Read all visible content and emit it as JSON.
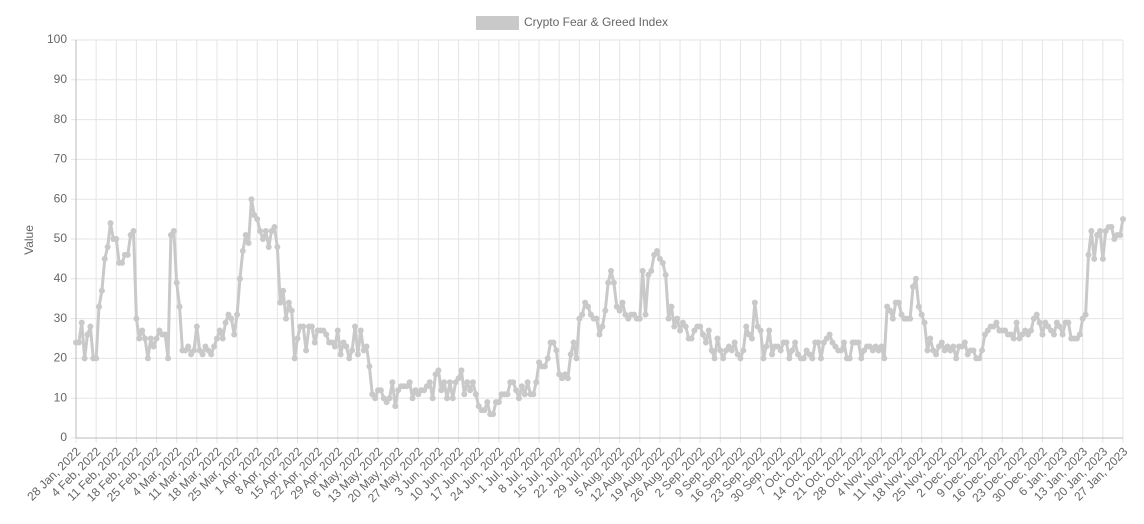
{
  "chart_data": {
    "type": "line",
    "y_label": "Value",
    "ylim": [
      0,
      100
    ],
    "yticks": [
      0,
      10,
      20,
      30,
      40,
      50,
      60,
      70,
      80,
      90,
      100
    ],
    "grid": true,
    "legend": "top",
    "categories": [
      "28 Jan, 2022",
      null,
      null,
      null,
      null,
      null,
      null,
      "4 Feb, 2022",
      null,
      null,
      null,
      null,
      null,
      null,
      "11 Feb, 2022",
      null,
      null,
      null,
      null,
      null,
      null,
      "18 Feb, 2022",
      null,
      null,
      null,
      null,
      null,
      null,
      "25 Feb, 2022",
      null,
      null,
      null,
      null,
      null,
      null,
      "4 Mar, 2022",
      null,
      null,
      null,
      null,
      null,
      null,
      "11 Mar, 2022",
      null,
      null,
      null,
      null,
      null,
      null,
      "18 Mar, 2022",
      null,
      null,
      null,
      null,
      null,
      null,
      "25 Mar, 2022",
      null,
      null,
      null,
      null,
      null,
      null,
      "1 Apr, 2022",
      null,
      null,
      null,
      null,
      null,
      null,
      "8 Apr, 2022",
      null,
      null,
      null,
      null,
      null,
      null,
      "15 Apr, 2022",
      null,
      null,
      null,
      null,
      null,
      null,
      "22 Apr, 2022",
      null,
      null,
      null,
      null,
      null,
      null,
      "29 Apr, 2022",
      null,
      null,
      null,
      null,
      null,
      null,
      "6 May, 2022",
      null,
      null,
      null,
      null,
      null,
      null,
      "13 May, 2022",
      null,
      null,
      null,
      null,
      null,
      null,
      "20 May, 2022",
      null,
      null,
      null,
      null,
      null,
      null,
      "27 May, 2022",
      null,
      null,
      null,
      null,
      null,
      null,
      "3 Jun, 2022",
      null,
      null,
      null,
      null,
      null,
      null,
      "10 Jun, 2022",
      null,
      null,
      null,
      null,
      null,
      null,
      "17 Jun, 2022",
      null,
      null,
      null,
      null,
      null,
      null,
      "24 Jun, 2022",
      null,
      null,
      null,
      null,
      null,
      null,
      "1 Jul, 2022",
      null,
      null,
      null,
      null,
      null,
      null,
      "8 Jul, 2022",
      null,
      null,
      null,
      null,
      null,
      null,
      "15 Jul, 2022",
      null,
      null,
      null,
      null,
      null,
      null,
      "22 Jul, 2022",
      null,
      null,
      null,
      null,
      null,
      null,
      "29 Jul, 2022",
      null,
      null,
      null,
      null,
      null,
      null,
      "5 Aug, 2022",
      null,
      null,
      null,
      null,
      null,
      null,
      "12 Aug, 2022",
      null,
      null,
      null,
      null,
      null,
      null,
      "19 Aug, 2022",
      null,
      null,
      null,
      null,
      null,
      null,
      "26 Aug, 2022",
      null,
      null,
      null,
      null,
      null,
      null,
      "2 Sep, 2022",
      null,
      null,
      null,
      null,
      null,
      null,
      "9 Sep, 2022",
      null,
      null,
      null,
      null,
      null,
      null,
      "16 Sep, 2022",
      null,
      null,
      null,
      null,
      null,
      null,
      "23 Sep, 2022",
      null,
      null,
      null,
      null,
      null,
      null,
      "30 Sep, 2022",
      null,
      null,
      null,
      null,
      null,
      null,
      "7 Oct, 2022",
      null,
      null,
      null,
      null,
      null,
      null,
      "14 Oct, 2022",
      null,
      null,
      null,
      null,
      null,
      null,
      "21 Oct, 2022",
      null,
      null,
      null,
      null,
      null,
      null,
      "28 Oct, 2022",
      null,
      null,
      null,
      null,
      null,
      null,
      "4 Nov, 2022",
      null,
      null,
      null,
      null,
      null,
      null,
      "11 Nov, 2022",
      null,
      null,
      null,
      null,
      null,
      null,
      "18 Nov, 2022",
      null,
      null,
      null,
      null,
      null,
      null,
      "25 Nov, 2022",
      null,
      null,
      null,
      null,
      null,
      null,
      "2 Dec, 2022",
      null,
      null,
      null,
      null,
      null,
      null,
      "9 Dec, 2022",
      null,
      null,
      null,
      null,
      null,
      null,
      "16 Dec, 2022",
      null,
      null,
      null,
      null,
      null,
      null,
      "23 Dec, 2022",
      null,
      null,
      null,
      null,
      null,
      null,
      "30 Dec, 2022",
      null,
      null,
      null,
      null,
      null,
      null,
      "6 Jan, 2023",
      null,
      null,
      null,
      null,
      null,
      null,
      "13 Jan, 2023",
      null,
      null,
      null,
      null,
      null,
      null,
      "20 Jan, 2023",
      null,
      null,
      null,
      null,
      null,
      null,
      "27 Jan, 2023"
    ],
    "series": [
      {
        "name": "Crypto Fear & Greed Index",
        "color": "#c9c9c9",
        "values": [
          24,
          24,
          29,
          20,
          26,
          28,
          20,
          20,
          33,
          37,
          45,
          48,
          54,
          50,
          50,
          44,
          44,
          46,
          46,
          51,
          52,
          30,
          25,
          27,
          25,
          20,
          25,
          23,
          25,
          27,
          26,
          26,
          20,
          51,
          52,
          39,
          33,
          22,
          22,
          23,
          21,
          22,
          28,
          22,
          21,
          23,
          22,
          21,
          23,
          25,
          27,
          25,
          29,
          31,
          30,
          26,
          31,
          40,
          47,
          51,
          49,
          60,
          56,
          55,
          52,
          50,
          52,
          48,
          52,
          53,
          48,
          34,
          37,
          30,
          34,
          32,
          20,
          25,
          28,
          28,
          22,
          28,
          28,
          24,
          27,
          27,
          27,
          26,
          24,
          24,
          23,
          27,
          21,
          24,
          23,
          20,
          22,
          28,
          21,
          27,
          22,
          23,
          18,
          11,
          10,
          12,
          12,
          10,
          9,
          10,
          14,
          8,
          12,
          13,
          13,
          13,
          14,
          10,
          12,
          11,
          12,
          12,
          13,
          14,
          10,
          16,
          17,
          12,
          14,
          10,
          14,
          10,
          14,
          15,
          17,
          11,
          14,
          12,
          14,
          11,
          8,
          7,
          7,
          9,
          6,
          6,
          9,
          9,
          11,
          11,
          11,
          14,
          14,
          12,
          10,
          13,
          11,
          14,
          11,
          11,
          14,
          19,
          18,
          18,
          20,
          24,
          24,
          22,
          16,
          15,
          16,
          15,
          21,
          24,
          20,
          30,
          31,
          34,
          33,
          31,
          30,
          30,
          26,
          28,
          32,
          39,
          42,
          39,
          33,
          32,
          34,
          31,
          30,
          31,
          31,
          30,
          30,
          42,
          31,
          41,
          42,
          46,
          47,
          45,
          44,
          41,
          30,
          33,
          28,
          30,
          27,
          29,
          28,
          25,
          25,
          27,
          28,
          28,
          26,
          24,
          27,
          22,
          20,
          25,
          22,
          20,
          22,
          23,
          22,
          24,
          21,
          20,
          22,
          28,
          26,
          25,
          34,
          28,
          27,
          20,
          23,
          27,
          21,
          23,
          23,
          22,
          24,
          24,
          20,
          22,
          24,
          21,
          20,
          20,
          22,
          21,
          20,
          24,
          24,
          20,
          24,
          25,
          26,
          24,
          23,
          22,
          22,
          24,
          20,
          20,
          24,
          24,
          24,
          20,
          22,
          23,
          23,
          22,
          23,
          22,
          23,
          20,
          33,
          32,
          30,
          34,
          34,
          31,
          30,
          30,
          30,
          38,
          40,
          33,
          31,
          29,
          22,
          25,
          22,
          21,
          23,
          24,
          22,
          23,
          22,
          23,
          20,
          23,
          23,
          24,
          21,
          22,
          22,
          20,
          20,
          22,
          26,
          27,
          28,
          28,
          29,
          27,
          27,
          27,
          26,
          26,
          25,
          29,
          25,
          26,
          27,
          26,
          27,
          30,
          31,
          29,
          26,
          29,
          28,
          27,
          26,
          29,
          28,
          26,
          29,
          29,
          25,
          25,
          25,
          26,
          30,
          31,
          46,
          52,
          45,
          51,
          52,
          45,
          52,
          53,
          53,
          50,
          51,
          51,
          55
        ]
      }
    ]
  }
}
